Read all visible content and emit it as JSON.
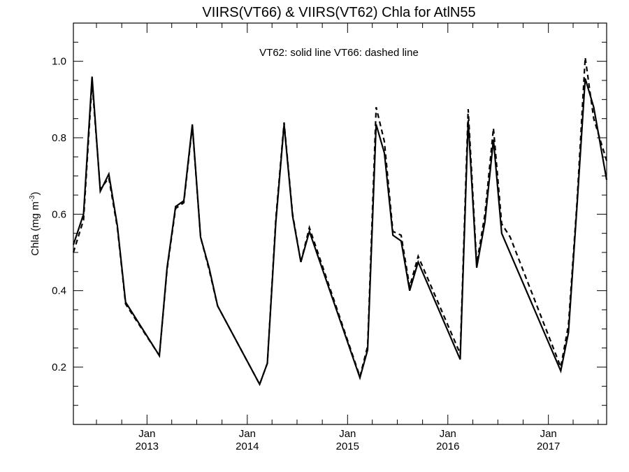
{
  "chart_data": {
    "type": "line",
    "title": "VIIRS(VT66) & VIIRS(VT62)  Chla for AtlN55",
    "annotation": "VT62: solid line   VT66: dashed line",
    "ylabel": "Chla (mg m",
    "ylabel_sup": "-3",
    "ylabel_close": ")",
    "xlim": [
      "2012-04-08",
      "2017-08-01"
    ],
    "ylim": [
      0.05,
      1.1
    ],
    "yticks": [
      0.2,
      0.4,
      0.6,
      0.8,
      1.0
    ],
    "ytick_labels": [
      "0.2",
      "0.4",
      "0.6",
      "0.8",
      "1.0"
    ],
    "xticks": [
      {
        "date": "2013-01-01",
        "month": "Jan",
        "year": "2013"
      },
      {
        "date": "2014-01-01",
        "month": "Jan",
        "year": "2014"
      },
      {
        "date": "2015-01-01",
        "month": "Jan",
        "year": "2015"
      },
      {
        "date": "2016-01-01",
        "month": "Jan",
        "year": "2016"
      },
      {
        "date": "2017-01-01",
        "month": "Jan",
        "year": "2017"
      }
    ],
    "grid": false,
    "series": [
      {
        "name": "VT62",
        "style": "solid",
        "color": "#000000",
        "points": [
          {
            "x": "2012-04-08",
            "y": 0.52
          },
          {
            "x": "2012-05-15",
            "y": 0.6
          },
          {
            "x": "2012-06-15",
            "y": 0.96
          },
          {
            "x": "2012-07-15",
            "y": 0.66
          },
          {
            "x": "2012-08-15",
            "y": 0.705
          },
          {
            "x": "2012-09-15",
            "y": 0.57
          },
          {
            "x": "2012-10-15",
            "y": 0.37
          },
          {
            "x": "2013-02-15",
            "y": 0.23
          },
          {
            "x": "2013-03-15",
            "y": 0.46
          },
          {
            "x": "2013-04-15",
            "y": 0.62
          },
          {
            "x": "2013-05-15",
            "y": 0.635
          },
          {
            "x": "2013-06-15",
            "y": 0.835
          },
          {
            "x": "2013-07-15",
            "y": 0.54
          },
          {
            "x": "2013-08-15",
            "y": 0.46
          },
          {
            "x": "2013-09-15",
            "y": 0.36
          },
          {
            "x": "2014-02-15",
            "y": 0.155
          },
          {
            "x": "2014-03-15",
            "y": 0.21
          },
          {
            "x": "2014-04-15",
            "y": 0.58
          },
          {
            "x": "2014-05-15",
            "y": 0.835
          },
          {
            "x": "2014-06-15",
            "y": 0.595
          },
          {
            "x": "2014-07-15",
            "y": 0.475
          },
          {
            "x": "2014-08-15",
            "y": 0.555
          },
          {
            "x": "2015-02-15",
            "y": 0.172
          },
          {
            "x": "2015-03-15",
            "y": 0.245
          },
          {
            "x": "2015-04-15",
            "y": 0.835
          },
          {
            "x": "2015-05-15",
            "y": 0.76
          },
          {
            "x": "2015-06-15",
            "y": 0.545
          },
          {
            "x": "2015-07-15",
            "y": 0.53
          },
          {
            "x": "2015-08-15",
            "y": 0.4
          },
          {
            "x": "2015-09-15",
            "y": 0.475
          },
          {
            "x": "2016-02-15",
            "y": 0.22
          },
          {
            "x": "2016-03-15",
            "y": 0.845
          },
          {
            "x": "2016-04-15",
            "y": 0.46
          },
          {
            "x": "2016-05-15",
            "y": 0.58
          },
          {
            "x": "2016-06-15",
            "y": 0.795
          },
          {
            "x": "2016-07-15",
            "y": 0.55
          },
          {
            "x": "2017-02-15",
            "y": 0.19
          },
          {
            "x": "2017-03-15",
            "y": 0.29
          },
          {
            "x": "2017-04-15",
            "y": 0.62
          },
          {
            "x": "2017-05-15",
            "y": 0.955
          },
          {
            "x": "2017-06-15",
            "y": 0.88
          },
          {
            "x": "2017-08-01",
            "y": 0.69
          }
        ]
      },
      {
        "name": "VT66",
        "style": "dashed",
        "color": "#000000",
        "points": [
          {
            "x": "2012-04-08",
            "y": 0.5
          },
          {
            "x": "2012-05-15",
            "y": 0.585
          },
          {
            "x": "2012-06-15",
            "y": 0.945
          },
          {
            "x": "2012-07-15",
            "y": 0.665
          },
          {
            "x": "2012-08-15",
            "y": 0.695
          },
          {
            "x": "2012-09-15",
            "y": 0.565
          },
          {
            "x": "2012-10-15",
            "y": 0.365
          },
          {
            "x": "2013-02-15",
            "y": 0.23
          },
          {
            "x": "2013-03-15",
            "y": 0.455
          },
          {
            "x": "2013-04-15",
            "y": 0.615
          },
          {
            "x": "2013-05-15",
            "y": 0.63
          },
          {
            "x": "2013-06-15",
            "y": 0.83
          },
          {
            "x": "2013-07-15",
            "y": 0.54
          },
          {
            "x": "2013-08-15",
            "y": 0.455
          },
          {
            "x": "2013-09-15",
            "y": 0.36
          },
          {
            "x": "2014-02-15",
            "y": 0.155
          },
          {
            "x": "2014-03-15",
            "y": 0.21
          },
          {
            "x": "2014-04-15",
            "y": 0.59
          },
          {
            "x": "2014-05-15",
            "y": 0.84
          },
          {
            "x": "2014-06-15",
            "y": 0.6
          },
          {
            "x": "2014-07-15",
            "y": 0.475
          },
          {
            "x": "2014-08-15",
            "y": 0.565
          },
          {
            "x": "2015-02-15",
            "y": 0.175
          },
          {
            "x": "2015-03-15",
            "y": 0.255
          },
          {
            "x": "2015-04-15",
            "y": 0.88
          },
          {
            "x": "2015-05-15",
            "y": 0.79
          },
          {
            "x": "2015-06-15",
            "y": 0.555
          },
          {
            "x": "2015-07-15",
            "y": 0.545
          },
          {
            "x": "2015-08-15",
            "y": 0.41
          },
          {
            "x": "2015-09-15",
            "y": 0.49
          },
          {
            "x": "2016-02-15",
            "y": 0.235
          },
          {
            "x": "2016-03-15",
            "y": 0.875
          },
          {
            "x": "2016-04-15",
            "y": 0.47
          },
          {
            "x": "2016-05-15",
            "y": 0.6
          },
          {
            "x": "2016-06-15",
            "y": 0.825
          },
          {
            "x": "2016-07-15",
            "y": 0.575
          },
          {
            "x": "2016-08-15",
            "y": 0.54
          },
          {
            "x": "2017-02-15",
            "y": 0.2
          },
          {
            "x": "2017-03-15",
            "y": 0.31
          },
          {
            "x": "2017-04-15",
            "y": 0.63
          },
          {
            "x": "2017-05-15",
            "y": 1.01
          },
          {
            "x": "2017-06-15",
            "y": 0.85
          },
          {
            "x": "2017-08-01",
            "y": 0.74
          }
        ]
      }
    ]
  }
}
